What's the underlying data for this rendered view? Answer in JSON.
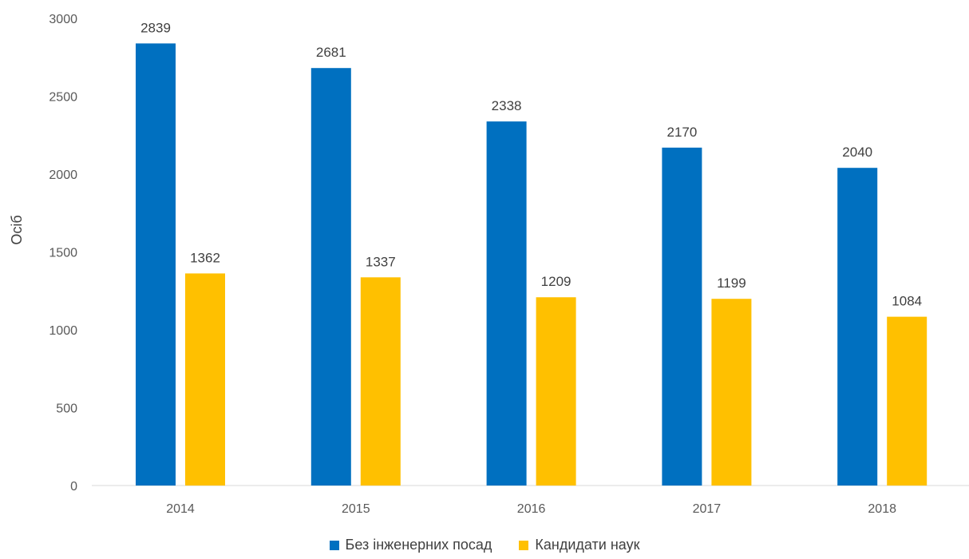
{
  "chart_data": {
    "type": "bar",
    "categories": [
      "2014",
      "2015",
      "2016",
      "2017",
      "2018"
    ],
    "series": [
      {
        "name": "Без інженерних посад",
        "values": [
          2839,
          2681,
          2338,
          2170,
          2040
        ],
        "color": "#0070C0"
      },
      {
        "name": "Кандидати наук",
        "values": [
          1362,
          1337,
          1209,
          1199,
          1084
        ],
        "color": "#FFC000"
      }
    ],
    "ylabel": "Осіб",
    "ylim": [
      0,
      3000
    ],
    "yticks": [
      "0",
      "500",
      "1000",
      "1500",
      "2000",
      "2500",
      "3000"
    ],
    "grid": false,
    "data_labels": true,
    "legend_position": "bottom"
  }
}
